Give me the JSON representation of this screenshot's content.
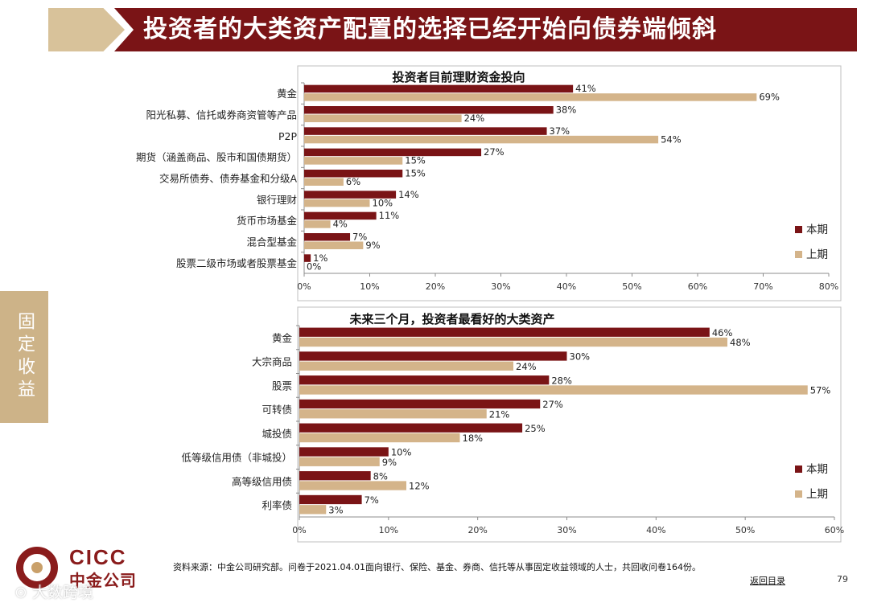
{
  "header": {
    "title": "投资者的大类资产配置的选择已经开始向债券端倾斜"
  },
  "side_tab": {
    "label": "固定收益"
  },
  "colors": {
    "current": "#7a1416",
    "previous": "#d4b48a",
    "brand": "#8a1c1c",
    "tab": "#cdb388"
  },
  "chart_data": [
    {
      "type": "bar",
      "orientation": "horizontal",
      "title": "投资者目前理财资金投向",
      "categories": [
        "黄金",
        "阳光私募、信托或券商资管等产品",
        "P2P",
        "期货（涵盖商品、股市和国债期货）",
        "交易所债券、债券基金和分级A",
        "银行理财",
        "货币市场基金",
        "混合型基金",
        "股票二级市场或者股票基金"
      ],
      "series": [
        {
          "name": "本期",
          "values": [
            41,
            38,
            37,
            27,
            15,
            14,
            11,
            7,
            1
          ]
        },
        {
          "name": "上期",
          "values": [
            69,
            24,
            54,
            15,
            6,
            10,
            4,
            9,
            0
          ]
        }
      ],
      "value_labels": [
        [
          "41%",
          "38%",
          "37%",
          "27%",
          "15%",
          "14%",
          "11%",
          "7%",
          "1%"
        ],
        [
          "69%",
          "24%",
          "54%",
          "15%",
          "6%",
          "10%",
          "4%",
          "9%",
          "0%"
        ]
      ],
      "xlim": [
        0,
        80
      ],
      "x_ticks": [
        "0%",
        "10%",
        "20%",
        "30%",
        "40%",
        "50%",
        "60%",
        "70%",
        "80%"
      ],
      "legend": "right"
    },
    {
      "type": "bar",
      "orientation": "horizontal",
      "title": "未来三个月，投资者最看好的大类资产",
      "categories": [
        "黄金",
        "大宗商品",
        "股票",
        "可转债",
        "城投债",
        "低等级信用债（非城投）",
        "高等级信用债",
        "利率债"
      ],
      "series": [
        {
          "name": "本期",
          "values": [
            46,
            30,
            28,
            27,
            25,
            10,
            8,
            7
          ]
        },
        {
          "name": "上期",
          "values": [
            48,
            24,
            57,
            21,
            18,
            9,
            12,
            3
          ]
        }
      ],
      "value_labels": [
        [
          "46%",
          "30%",
          "28%",
          "27%",
          "25%",
          "10%",
          "8%",
          "7%"
        ],
        [
          "48%",
          "24%",
          "57%",
          "21%",
          "18%",
          "9%",
          "12%",
          "3%"
        ]
      ],
      "xlim": [
        0,
        60
      ],
      "x_ticks": [
        "0%",
        "10%",
        "20%",
        "30%",
        "40%",
        "50%",
        "60%"
      ],
      "legend": "right"
    }
  ],
  "footer": {
    "logo_en": "CICC",
    "logo_cn": "中金公司",
    "source": "资料来源：中金公司研究部。问卷于2021.04.01面向银行、保险、基金、券商、信托等从事固定收益领域的人士，共回收问卷164份。",
    "back_link": "返回目录",
    "page_number": "79",
    "watermark": "⊙ 大数跨境"
  }
}
